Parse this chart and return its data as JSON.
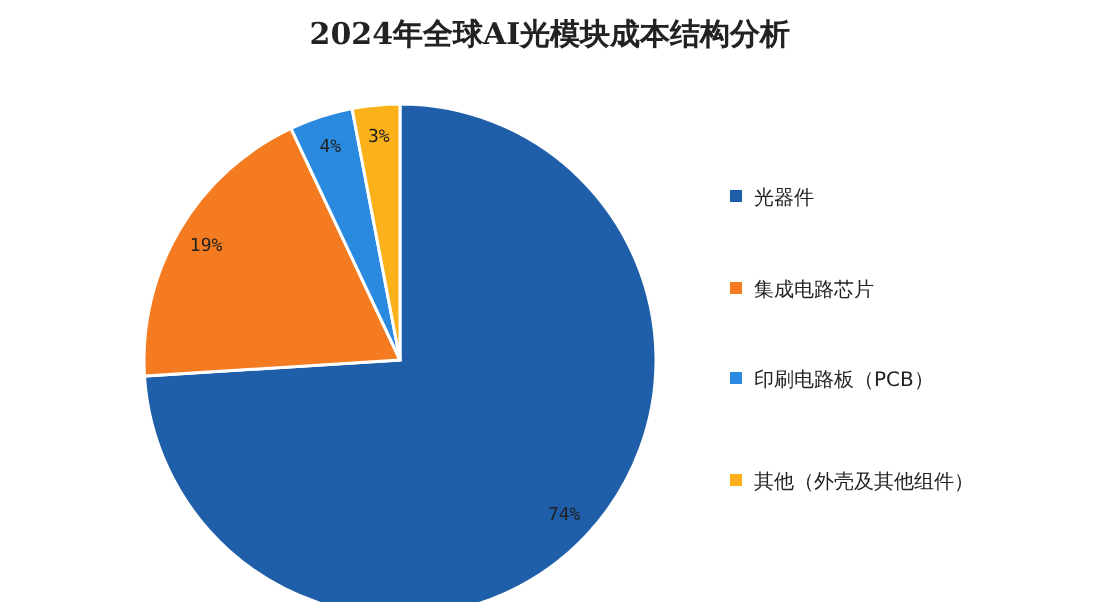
{
  "chart_data": {
    "type": "pie",
    "title": "2024年全球AI光模块成本结构分析",
    "categories": [
      "光器件",
      "集成电路芯片",
      "印刷电路板（PCB）",
      "其他（外壳及其他组件）"
    ],
    "values": [
      74,
      19,
      4,
      3
    ],
    "colors": [
      "#1f5ea8",
      "#f47b20",
      "#2a8ae0",
      "#fbb21a"
    ],
    "value_labels": [
      "74%",
      "19%",
      "4%",
      "3%"
    ],
    "legend": "right"
  }
}
